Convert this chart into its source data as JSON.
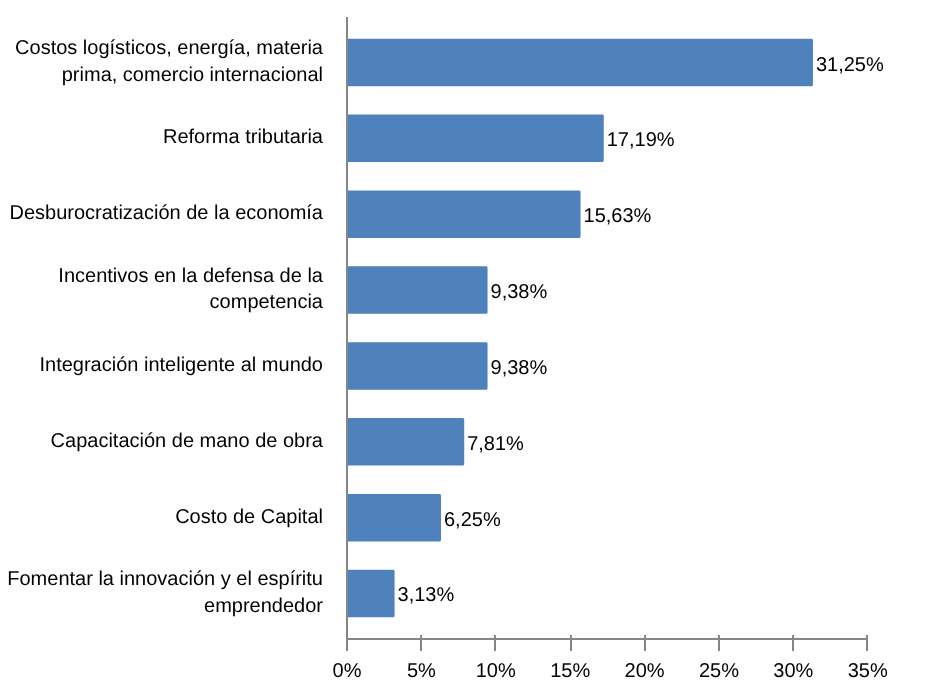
{
  "chart_data": {
    "type": "bar",
    "orientation": "horizontal",
    "categories": [
      "Costos logísticos, energía, materia prima, comercio internacional",
      "Reforma tributaria",
      "Desburocratización de la economía",
      "Incentivos en la defensa de la competencia",
      "Integración inteligente al mundo",
      "Capacitación de mano de obra",
      "Costo de Capital",
      "Fomentar la innovación y el espíritu emprendedor"
    ],
    "values": [
      31.25,
      17.19,
      15.63,
      9.38,
      9.38,
      7.81,
      6.25,
      3.13
    ],
    "value_labels": [
      "31,25%",
      "17,19%",
      "15,63%",
      "9,38%",
      "9,38%",
      "7,81%",
      "6,25%",
      "3,13%"
    ],
    "color": "#4f81bd",
    "xlim": [
      0,
      35
    ],
    "xticks": [
      {
        "value": 0,
        "label": "0%"
      },
      {
        "value": 5,
        "label": "5%"
      },
      {
        "value": 10,
        "label": "10%"
      },
      {
        "value": 15,
        "label": "15%"
      },
      {
        "value": 20,
        "label": "20%"
      },
      {
        "value": 25,
        "label": "25%"
      },
      {
        "value": 30,
        "label": "30%"
      },
      {
        "value": 35,
        "label": "35%"
      }
    ],
    "grid": false
  }
}
